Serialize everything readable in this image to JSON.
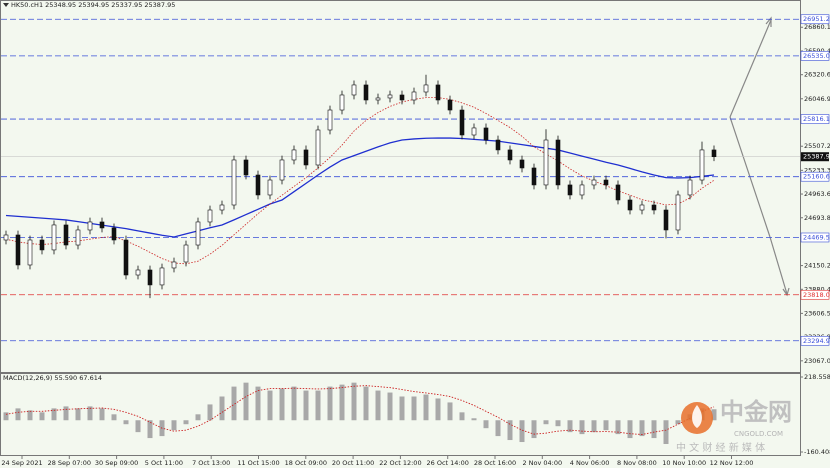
{
  "chart_data": [
    {
      "type": "candlestick",
      "title": "HK50.cH1  25348.95 25394.95 25337.95 25387.95",
      "x_ticks": [
        "24 Sep 2021",
        "28 Sep 07:00",
        "30 Sep 09:00",
        "5 Oct 11:00",
        "7 Oct 13:00",
        "11 Oct 15:00",
        "18 Oct 09:00",
        "20 Oct 11:00",
        "22 Oct 12:00",
        "26 Oct 14:00",
        "28 Oct 16:00",
        "2 Nov 04:00",
        "4 Nov 06:00",
        "8 Nov 08:00",
        "10 Nov 10:00",
        "12 Nov 12:00"
      ],
      "open": [
        24441,
        24498,
        24157,
        24441,
        24328,
        24612,
        24384,
        24555,
        24646,
        24578,
        24441,
        24043,
        24100,
        23930,
        24123,
        24191,
        24384,
        24646,
        24782,
        24839,
        25351,
        25180,
        24953,
        25123,
        25351,
        25465,
        25294,
        25692,
        25919,
        26090,
        26204,
        26033,
        26056,
        26090,
        26033,
        26124,
        26204,
        26033,
        25919,
        25635,
        25715,
        25578,
        25465,
        25351,
        25260,
        25067,
        25578,
        25067,
        24953,
        25067,
        25123,
        25067,
        24896,
        24782,
        24839,
        24782,
        24555,
        24953,
        25123,
        25465
      ],
      "high": [
        24548,
        24548,
        24491,
        24491,
        24662,
        24662,
        24605,
        24696,
        24696,
        24628,
        24491,
        24150,
        24150,
        24173,
        24241,
        24434,
        24696,
        24832,
        24889,
        25401,
        25401,
        25230,
        25173,
        25401,
        25515,
        25515,
        25742,
        25969,
        26140,
        26254,
        26254,
        26106,
        26140,
        26140,
        26174,
        26320,
        26254,
        26083,
        25969,
        25765,
        25765,
        25628,
        25515,
        25401,
        25310,
        25700,
        25628,
        25117,
        25117,
        25173,
        25173,
        25117,
        24946,
        24889,
        24889,
        24832,
        25003,
        25173,
        25560,
        25515
      ],
      "low": [
        24391,
        24107,
        24107,
        24278,
        24278,
        24334,
        24334,
        24505,
        24528,
        24391,
        23993,
        23993,
        23780,
        23880,
        24073,
        24141,
        24334,
        24596,
        24732,
        24789,
        25130,
        24903,
        24903,
        25073,
        25301,
        25244,
        25244,
        25642,
        25869,
        26040,
        25983,
        25983,
        26006,
        25983,
        25983,
        26074,
        25983,
        25869,
        25585,
        25585,
        25528,
        25415,
        25301,
        25210,
        25017,
        25017,
        25017,
        24903,
        24903,
        25017,
        25017,
        24846,
        24732,
        24732,
        24732,
        24460,
        24505,
        24903,
        25073,
        25338
      ],
      "close": [
        24498,
        24157,
        24441,
        24328,
        24612,
        24384,
        24555,
        24646,
        24578,
        24441,
        24043,
        24100,
        23930,
        24123,
        24191,
        24384,
        24646,
        24782,
        24839,
        25351,
        25180,
        24953,
        25123,
        25351,
        25465,
        25294,
        25692,
        25919,
        26090,
        26204,
        26033,
        26056,
        26090,
        26033,
        26124,
        26204,
        26033,
        25919,
        25635,
        25715,
        25578,
        25465,
        25351,
        25260,
        25067,
        25578,
        25067,
        24953,
        25067,
        25123,
        25067,
        24896,
        24782,
        24839,
        24782,
        24555,
        24953,
        25123,
        25465,
        25388
      ],
      "series": [
        {
          "color": "#1f2fd0",
          "style": "solid",
          "values": [
            24720,
            24710,
            24700,
            24690,
            24680,
            24669,
            24650,
            24630,
            24610,
            24590,
            24570,
            24545,
            24520,
            24495,
            24475,
            24510,
            24545,
            24580,
            24612,
            24670,
            24730,
            24790,
            24850,
            24896,
            24990,
            25085,
            25180,
            25270,
            25351,
            25400,
            25450,
            25500,
            25545,
            25578,
            25590,
            25598,
            25601,
            25600,
            25595,
            25585,
            25575,
            25565,
            25545,
            25525,
            25505,
            25485,
            25465,
            25430,
            25395,
            25360,
            25325,
            25294,
            25255,
            25215,
            25180,
            25150,
            25146,
            25150,
            25165,
            25180
          ]
        },
        {
          "color": "#cc2222",
          "style": "dotted",
          "values": [
            24450,
            24420,
            24400,
            24390,
            24400,
            24420,
            24430,
            24450,
            24470,
            24480,
            24430,
            24370,
            24300,
            24230,
            24180,
            24170,
            24200,
            24280,
            24380,
            24500,
            24620,
            24740,
            24850,
            24950,
            25050,
            25150,
            25260,
            25380,
            25520,
            25680,
            25800,
            25890,
            25960,
            26010,
            26040,
            26060,
            26060,
            26040,
            26000,
            25950,
            25880,
            25800,
            25720,
            25620,
            25500,
            25420,
            25340,
            25250,
            25170,
            25110,
            25060,
            25000,
            24950,
            24900,
            24870,
            24840,
            24850,
            24920,
            25030,
            25120
          ]
        }
      ],
      "levels": [
        {
          "value": 26951.26,
          "label": "26951.26",
          "color": "#3a4fd8"
        },
        {
          "value": 26535.0,
          "label": "26535.00",
          "color": "#3a4fd8"
        },
        {
          "value": 25816.19,
          "label": "25816.19",
          "color": "#3a4fd8"
        },
        {
          "value": 25160.63,
          "label": "25160.63",
          "color": "#3a4fd8"
        },
        {
          "value": 24469.58,
          "label": "24469.58",
          "color": "#3a4fd8"
        },
        {
          "value": 23818.0,
          "label": "23818.00",
          "color": "#e03030"
        },
        {
          "value": 23294.97,
          "label": "23294.97",
          "color": "#3a4fd8"
        }
      ],
      "current_price": {
        "value": 25387.95,
        "label": "25387.95"
      },
      "ylim": [
        22940,
        27170
      ],
      "yticks": [
        {
          "value": 26860.15,
          "label": "26860.15"
        },
        {
          "value": 26590.4,
          "label": "26590.40"
        },
        {
          "value": 26320.65,
          "label": "26320.65"
        },
        {
          "value": 26046.9,
          "label": "26046.90"
        },
        {
          "value": 25507.25,
          "label": "25507.25"
        },
        {
          "value": 25233.35,
          "label": "25233.35"
        },
        {
          "value": 24963.6,
          "label": "24963.60"
        },
        {
          "value": 24693.85,
          "label": "24693.85"
        },
        {
          "value": 24150.2,
          "label": "24150.20"
        },
        {
          "value": 23880.45,
          "label": "23880.45"
        },
        {
          "value": 23606.55,
          "label": "23606.55"
        },
        {
          "value": 23336.8,
          "label": "23336.80"
        },
        {
          "value": 23067.05,
          "label": "23067.05"
        }
      ]
    },
    {
      "type": "bar",
      "title": "MACD(12,26,9) 55.590 67.614",
      "color": "#a8a8a8",
      "values": [
        40,
        60,
        50,
        40,
        60,
        70,
        60,
        70,
        60,
        30,
        -20,
        -60,
        -90,
        -80,
        -50,
        -20,
        30,
        80,
        120,
        170,
        190,
        170,
        150,
        160,
        170,
        150,
        150,
        170,
        180,
        190,
        170,
        150,
        140,
        120,
        120,
        130,
        110,
        90,
        40,
        10,
        -40,
        -80,
        -100,
        -110,
        -90,
        -20,
        -30,
        -60,
        -70,
        -60,
        -50,
        -70,
        -90,
        -80,
        -90,
        -120,
        -20,
        30,
        60,
        55.59
      ],
      "series": [
        {
          "color": "#cc2222",
          "style": "dotted",
          "values": [
            30,
            40,
            45,
            45,
            50,
            55,
            58,
            60,
            62,
            55,
            40,
            20,
            -10,
            -40,
            -55,
            -50,
            -30,
            0,
            40,
            80,
            120,
            150,
            160,
            160,
            162,
            160,
            158,
            160,
            165,
            172,
            175,
            170,
            165,
            155,
            145,
            138,
            130,
            120,
            100,
            75,
            45,
            15,
            -20,
            -50,
            -70,
            -65,
            -55,
            -50,
            -55,
            -58,
            -57,
            -60,
            -68,
            -72,
            -60,
            -50,
            -20,
            10,
            45,
            67.614
          ]
        }
      ],
      "ylim": [
        -160.408,
        218.558
      ],
      "yticks": [
        218.558,
        -160.408
      ]
    }
  ],
  "watermark": {
    "name": "中金网",
    "url": "CNGOLD.COM",
    "tagline": "中 文 财 经 新 媒 体"
  }
}
